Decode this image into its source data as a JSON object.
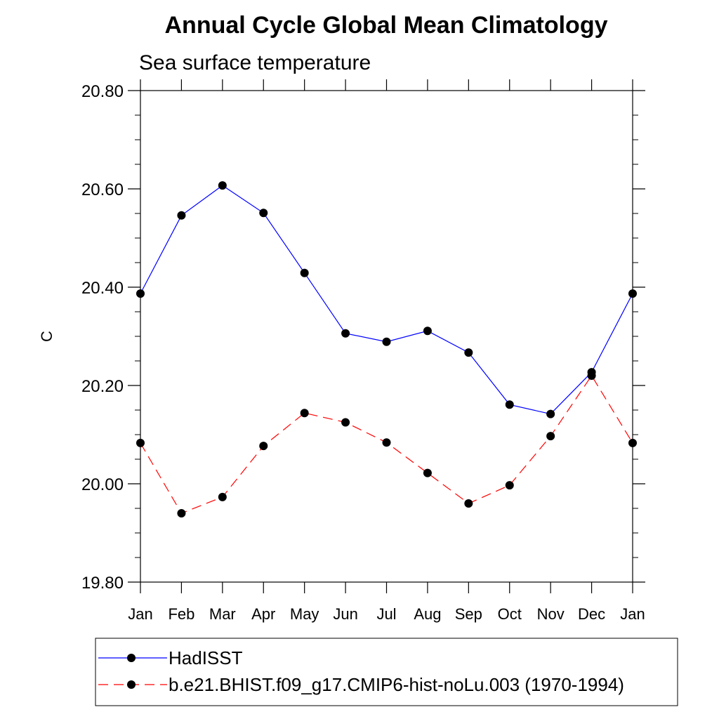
{
  "chart_data": {
    "type": "line",
    "title": "Annual Cycle Global Mean Climatology",
    "subtitle": "Sea surface temperature",
    "xlabel": "",
    "ylabel": "C",
    "categories": [
      "Jan",
      "Feb",
      "Mar",
      "Apr",
      "May",
      "Jun",
      "Jul",
      "Aug",
      "Sep",
      "Oct",
      "Nov",
      "Dec",
      "Jan"
    ],
    "ylim": [
      19.8,
      20.8
    ],
    "yticks": [
      "19.80",
      "20.00",
      "20.20",
      "20.40",
      "20.60",
      "20.80"
    ],
    "grid": false,
    "legend_position": "bottom",
    "series": [
      {
        "name": "HadISST",
        "color": "#0000ff",
        "dash": "solid",
        "marker": "filled-circle",
        "values": [
          20.387,
          20.546,
          20.607,
          20.551,
          20.429,
          20.306,
          20.289,
          20.311,
          20.267,
          20.161,
          20.142,
          20.227,
          20.387
        ]
      },
      {
        "name": "b.e21.BHIST.f09_g17.CMIP6-hist-noLu.003 (1970-1994)",
        "color": "#ff0000",
        "dash": "dashed",
        "marker": "filled-circle",
        "values": [
          20.083,
          19.94,
          19.973,
          20.077,
          20.144,
          20.125,
          20.084,
          20.022,
          19.96,
          19.997,
          20.097,
          20.22,
          20.083
        ]
      }
    ]
  }
}
